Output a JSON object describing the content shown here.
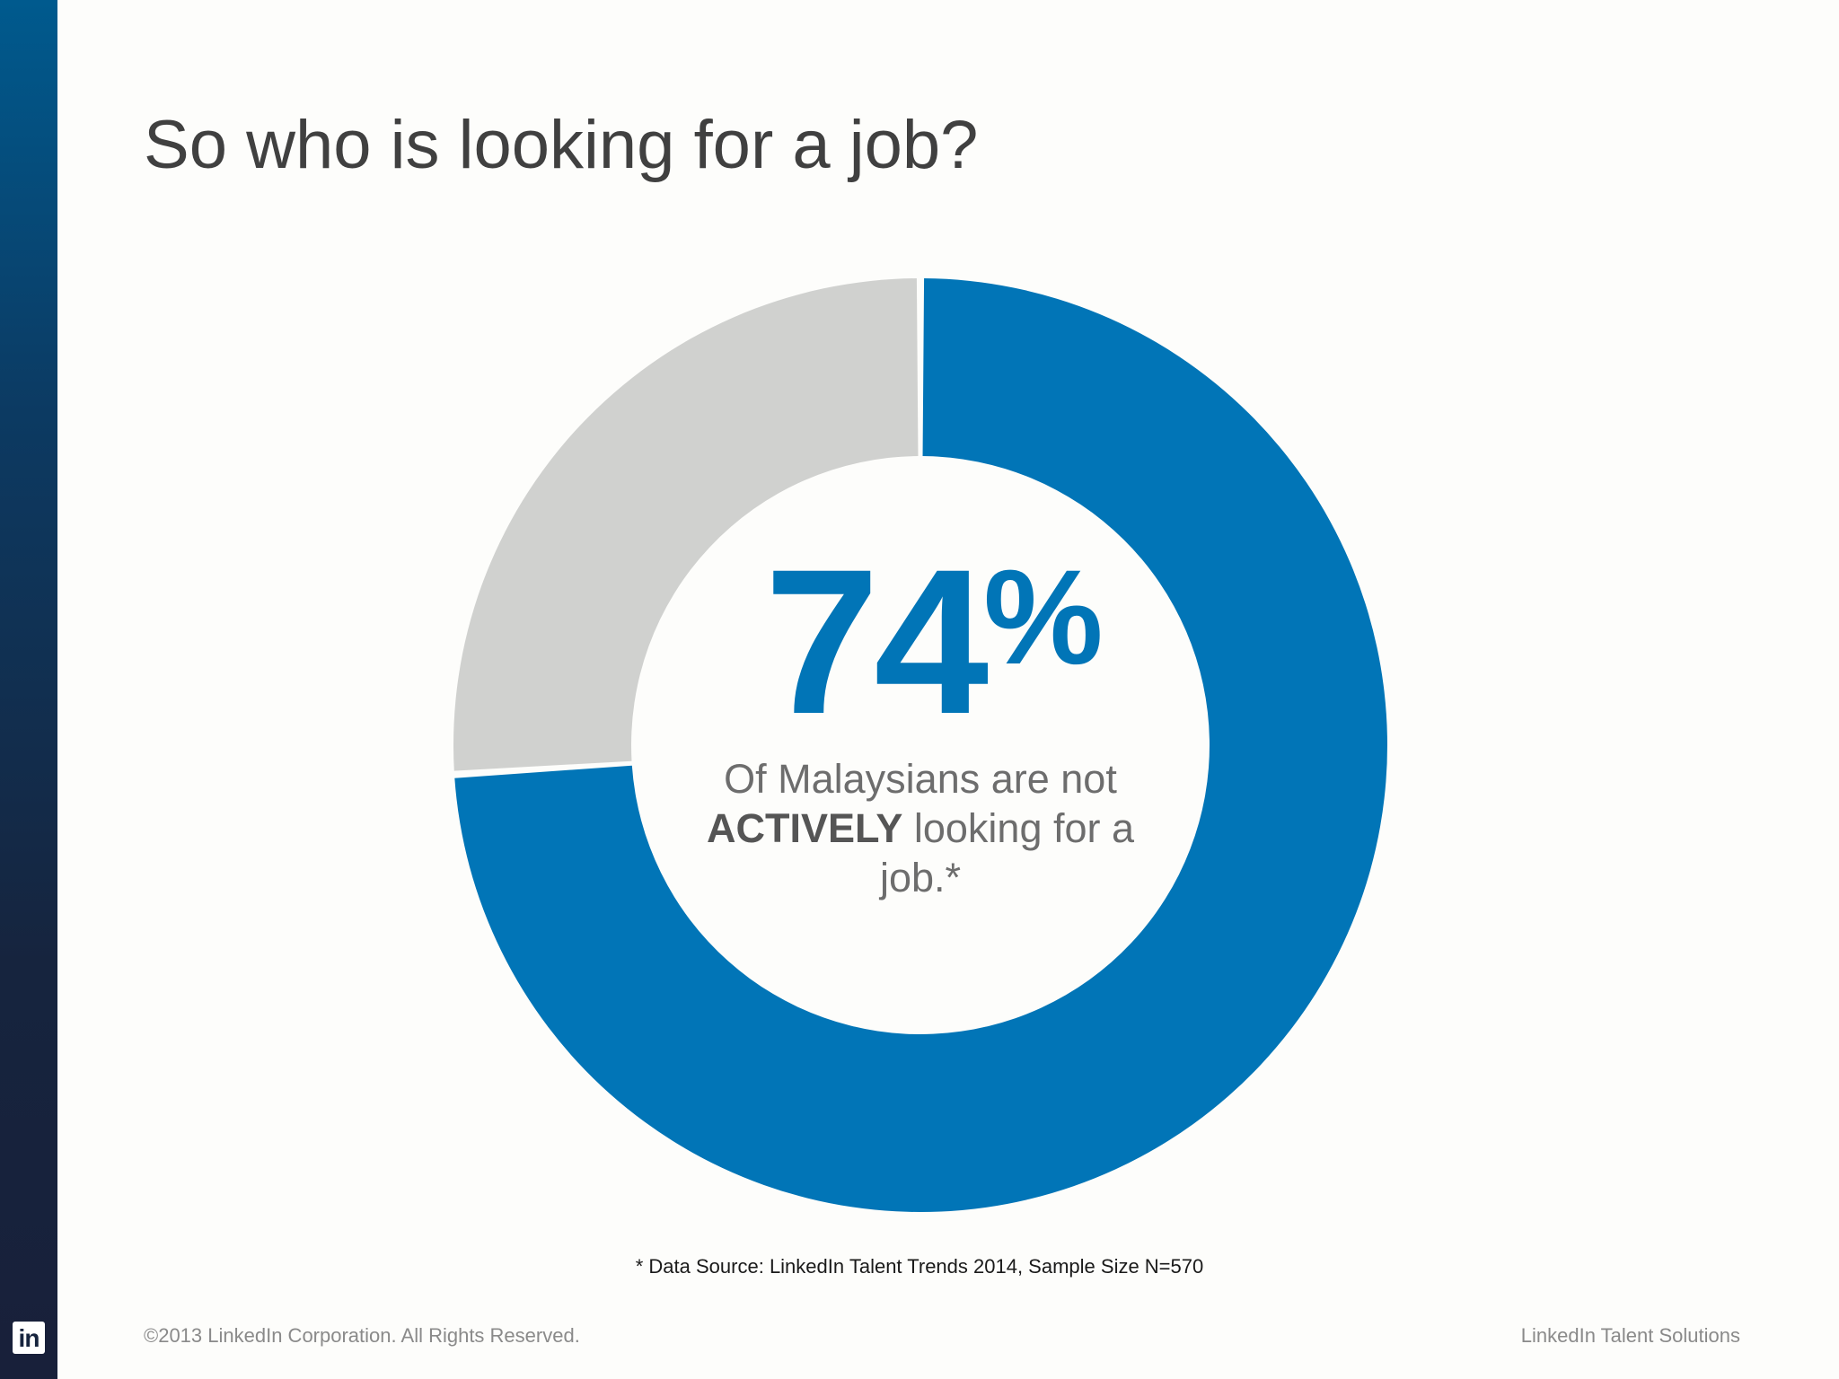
{
  "slide": {
    "title": "So who is looking for a job?",
    "source_note": "* Data Source: LinkedIn Talent Trends 2014, Sample Size N=570",
    "copyright": "©2013 LinkedIn Corporation. All Rights Reserved.",
    "brand": "LinkedIn Talent Solutions",
    "logo_text": "in"
  },
  "center": {
    "stat_number": "74",
    "stat_symbol": "%",
    "caption_part1": "Of Malaysians are not",
    "caption_bold": "ACTIVELY",
    "caption_part2": "looking for a job.*"
  },
  "colors": {
    "accent": "#0175b7",
    "remainder": "#d0d1cf",
    "title": "#404040",
    "sidebar_top": "#005a8e",
    "sidebar_bottom": "#18203a"
  },
  "chart_data": {
    "type": "pie",
    "variant": "donut",
    "title": "",
    "series": [
      {
        "values": [
          74,
          26
        ]
      }
    ],
    "colors": [
      "#0175b7",
      "#d0d1cf"
    ],
    "start": "top",
    "direction": "clockwise",
    "legend": "none",
    "data_labels": "74%"
  }
}
